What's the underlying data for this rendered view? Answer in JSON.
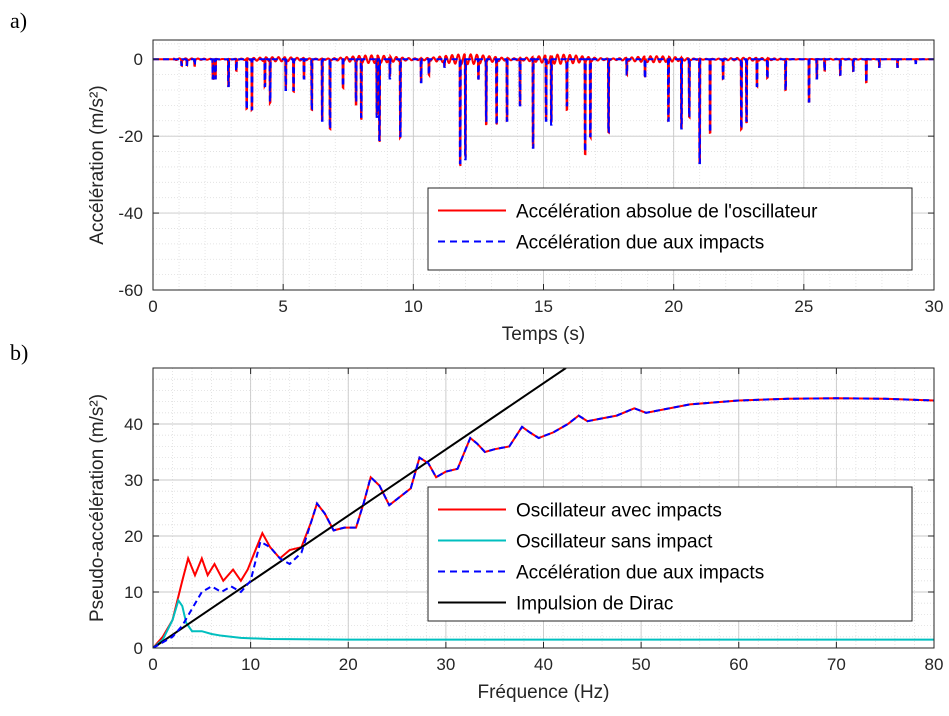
{
  "chart_data": [
    {
      "panel_label": "a)",
      "type": "line",
      "xlabel": "Temps (s)",
      "ylabel": "Accélération (m/s²)",
      "xlim": [
        0,
        30
      ],
      "ylim": [
        -60,
        5
      ],
      "xticks": [
        0,
        5,
        10,
        15,
        20,
        25,
        30
      ],
      "yticks": [
        -60,
        -40,
        -20,
        0
      ],
      "grid": true,
      "legend_position": "bottom-right",
      "series": [
        {
          "name": "Accélération absolue de l'oscillateur",
          "color": "#ff0000",
          "style": "solid"
        },
        {
          "name": "Accélération due aux impacts",
          "color": "#0000ff",
          "style": "dashed"
        }
      ],
      "impacts": [
        {
          "t": 1.1,
          "a": -1.5
        },
        {
          "t": 1.3,
          "a": -1.5
        },
        {
          "t": 1.6,
          "a": -1.5
        },
        {
          "t": 2.3,
          "a": -5
        },
        {
          "t": 2.4,
          "a": -5
        },
        {
          "t": 2.9,
          "a": -7
        },
        {
          "t": 3.2,
          "a": -3
        },
        {
          "t": 3.6,
          "a": -13
        },
        {
          "t": 3.8,
          "a": -13
        },
        {
          "t": 4.3,
          "a": -7
        },
        {
          "t": 4.5,
          "a": -11
        },
        {
          "t": 5.1,
          "a": -8
        },
        {
          "t": 5.4,
          "a": -8
        },
        {
          "t": 5.8,
          "a": -5
        },
        {
          "t": 6.1,
          "a": -13
        },
        {
          "t": 6.5,
          "a": -16
        },
        {
          "t": 6.8,
          "a": -18
        },
        {
          "t": 7.3,
          "a": -7
        },
        {
          "t": 7.8,
          "a": -11
        },
        {
          "t": 8.0,
          "a": -15
        },
        {
          "t": 8.6,
          "a": -15
        },
        {
          "t": 8.7,
          "a": -21
        },
        {
          "t": 9.1,
          "a": -5
        },
        {
          "t": 9.5,
          "a": -20
        },
        {
          "t": 10.3,
          "a": -6
        },
        {
          "t": 10.6,
          "a": -4
        },
        {
          "t": 11.2,
          "a": -2
        },
        {
          "t": 11.8,
          "a": -27
        },
        {
          "t": 12.0,
          "a": -26
        },
        {
          "t": 12.5,
          "a": -5
        },
        {
          "t": 12.8,
          "a": -16
        },
        {
          "t": 13.2,
          "a": -17
        },
        {
          "t": 13.6,
          "a": -16
        },
        {
          "t": 14.1,
          "a": -12
        },
        {
          "t": 14.6,
          "a": -23
        },
        {
          "t": 15.1,
          "a": -16
        },
        {
          "t": 15.3,
          "a": -17
        },
        {
          "t": 15.9,
          "a": -12
        },
        {
          "t": 16.6,
          "a": -24
        },
        {
          "t": 16.8,
          "a": -20
        },
        {
          "t": 17.5,
          "a": -19
        },
        {
          "t": 18.2,
          "a": -4
        },
        {
          "t": 18.9,
          "a": -5
        },
        {
          "t": 19.8,
          "a": -16
        },
        {
          "t": 20.3,
          "a": -18
        },
        {
          "t": 20.6,
          "a": -15
        },
        {
          "t": 21.0,
          "a": -27
        },
        {
          "t": 21.4,
          "a": -19
        },
        {
          "t": 21.9,
          "a": -5
        },
        {
          "t": 22.6,
          "a": -18
        },
        {
          "t": 22.8,
          "a": -16
        },
        {
          "t": 23.2,
          "a": -7
        },
        {
          "t": 23.6,
          "a": -5
        },
        {
          "t": 24.3,
          "a": -8
        },
        {
          "t": 25.2,
          "a": -11
        },
        {
          "t": 25.5,
          "a": -5
        },
        {
          "t": 25.8,
          "a": -3
        },
        {
          "t": 26.4,
          "a": -4
        },
        {
          "t": 26.9,
          "a": -3
        },
        {
          "t": 27.4,
          "a": -6
        },
        {
          "t": 27.9,
          "a": -2
        },
        {
          "t": 28.6,
          "a": -2
        },
        {
          "t": 29.3,
          "a": -1
        }
      ]
    },
    {
      "panel_label": "b)",
      "type": "line",
      "xlabel": "Fréquence (Hz)",
      "ylabel": "Pseudo-accélération (m/s²)",
      "xlim": [
        0,
        80
      ],
      "ylim": [
        0,
        50
      ],
      "xticks": [
        0,
        10,
        20,
        30,
        40,
        50,
        60,
        70,
        80
      ],
      "yticks": [
        0,
        10,
        20,
        30,
        40
      ],
      "grid": true,
      "legend_position": "center-right",
      "series": [
        {
          "name": "Oscillateur avec impacts",
          "color": "#ff0000",
          "style": "solid",
          "x": [
            0,
            1,
            2,
            3,
            3.6,
            4.3,
            5,
            5.6,
            6.3,
            7.2,
            8.2,
            9,
            9.7,
            10.5,
            11.2,
            12,
            13,
            14,
            15.2,
            16.2,
            16.8,
            17.6,
            18.5,
            19.6,
            20.8,
            21.6,
            22.3,
            23.2,
            24.2,
            25.3,
            26.4,
            27.3,
            28.2,
            29,
            30,
            31.2,
            32.5,
            33.2,
            34,
            35,
            36.5,
            37.8,
            38.6,
            39.5,
            41,
            42.5,
            43.6,
            44.5,
            46,
            47.5,
            49.3,
            50.5,
            55,
            60,
            65,
            70,
            75,
            80
          ],
          "y": [
            0,
            2,
            5,
            12,
            16,
            13,
            16,
            13,
            15,
            12,
            14,
            12,
            14,
            17.5,
            20.5,
            18,
            16,
            17.5,
            18,
            22.5,
            25.8,
            24,
            21,
            21.5,
            21.5,
            26,
            30.5,
            29,
            25.5,
            27,
            28.5,
            34,
            33,
            30.5,
            31.5,
            32,
            37.5,
            36.5,
            35,
            35.5,
            36,
            39.5,
            38.5,
            37.5,
            38.5,
            40,
            41.5,
            40.5,
            41,
            41.5,
            42.8,
            42,
            43.5,
            44.2,
            44.5,
            44.6,
            44.5,
            44.2
          ]
        },
        {
          "name": "Oscillateur sans impact",
          "color": "#00bfbf",
          "style": "solid",
          "x": [
            0,
            1,
            2,
            2.6,
            3,
            3.4,
            4,
            5,
            6,
            7,
            9,
            12,
            20,
            30,
            40,
            50,
            60,
            70,
            80
          ],
          "y": [
            0,
            1.5,
            5,
            8.5,
            7.5,
            4.5,
            3,
            3,
            2.5,
            2.2,
            1.8,
            1.6,
            1.5,
            1.5,
            1.5,
            1.5,
            1.5,
            1.5,
            1.5
          ]
        },
        {
          "name": "Accélération due aux impacts",
          "color": "#0000ff",
          "style": "dashed",
          "x": [
            0,
            2,
            3,
            4,
            5,
            6,
            7,
            8,
            9,
            10,
            11,
            12,
            13,
            14,
            15.2,
            16.2,
            16.8,
            17.6,
            18.5,
            19.6,
            20.8,
            21.6,
            22.3,
            23.2,
            24.2,
            25.3,
            26.4,
            27.3,
            28.2,
            29,
            30,
            31.2,
            32.5,
            33.2,
            34,
            35,
            36.5,
            37.8,
            38.6,
            39.5,
            41,
            42.5,
            43.6,
            44.5,
            46,
            47.5,
            49.3,
            50.5,
            55,
            60,
            65,
            70,
            75,
            80
          ],
          "y": [
            0,
            2,
            4,
            7,
            10,
            11,
            10,
            11,
            10,
            12,
            19,
            18,
            16,
            15,
            17,
            22.5,
            25.8,
            24,
            21,
            21.5,
            21.5,
            26,
            30.5,
            29,
            25.5,
            27,
            28.5,
            34,
            33,
            30.5,
            31.5,
            32,
            37.5,
            36.5,
            35,
            35.5,
            36,
            39.5,
            38.5,
            37.5,
            38.5,
            40,
            41.5,
            40.5,
            41,
            41.5,
            42.8,
            42,
            43.5,
            44.2,
            44.5,
            44.6,
            44.5,
            44.2
          ]
        },
        {
          "name": "Impulsion de Dirac",
          "color": "#000000",
          "style": "solid",
          "x": [
            0,
            42.3
          ],
          "y": [
            0,
            50
          ]
        }
      ]
    }
  ]
}
